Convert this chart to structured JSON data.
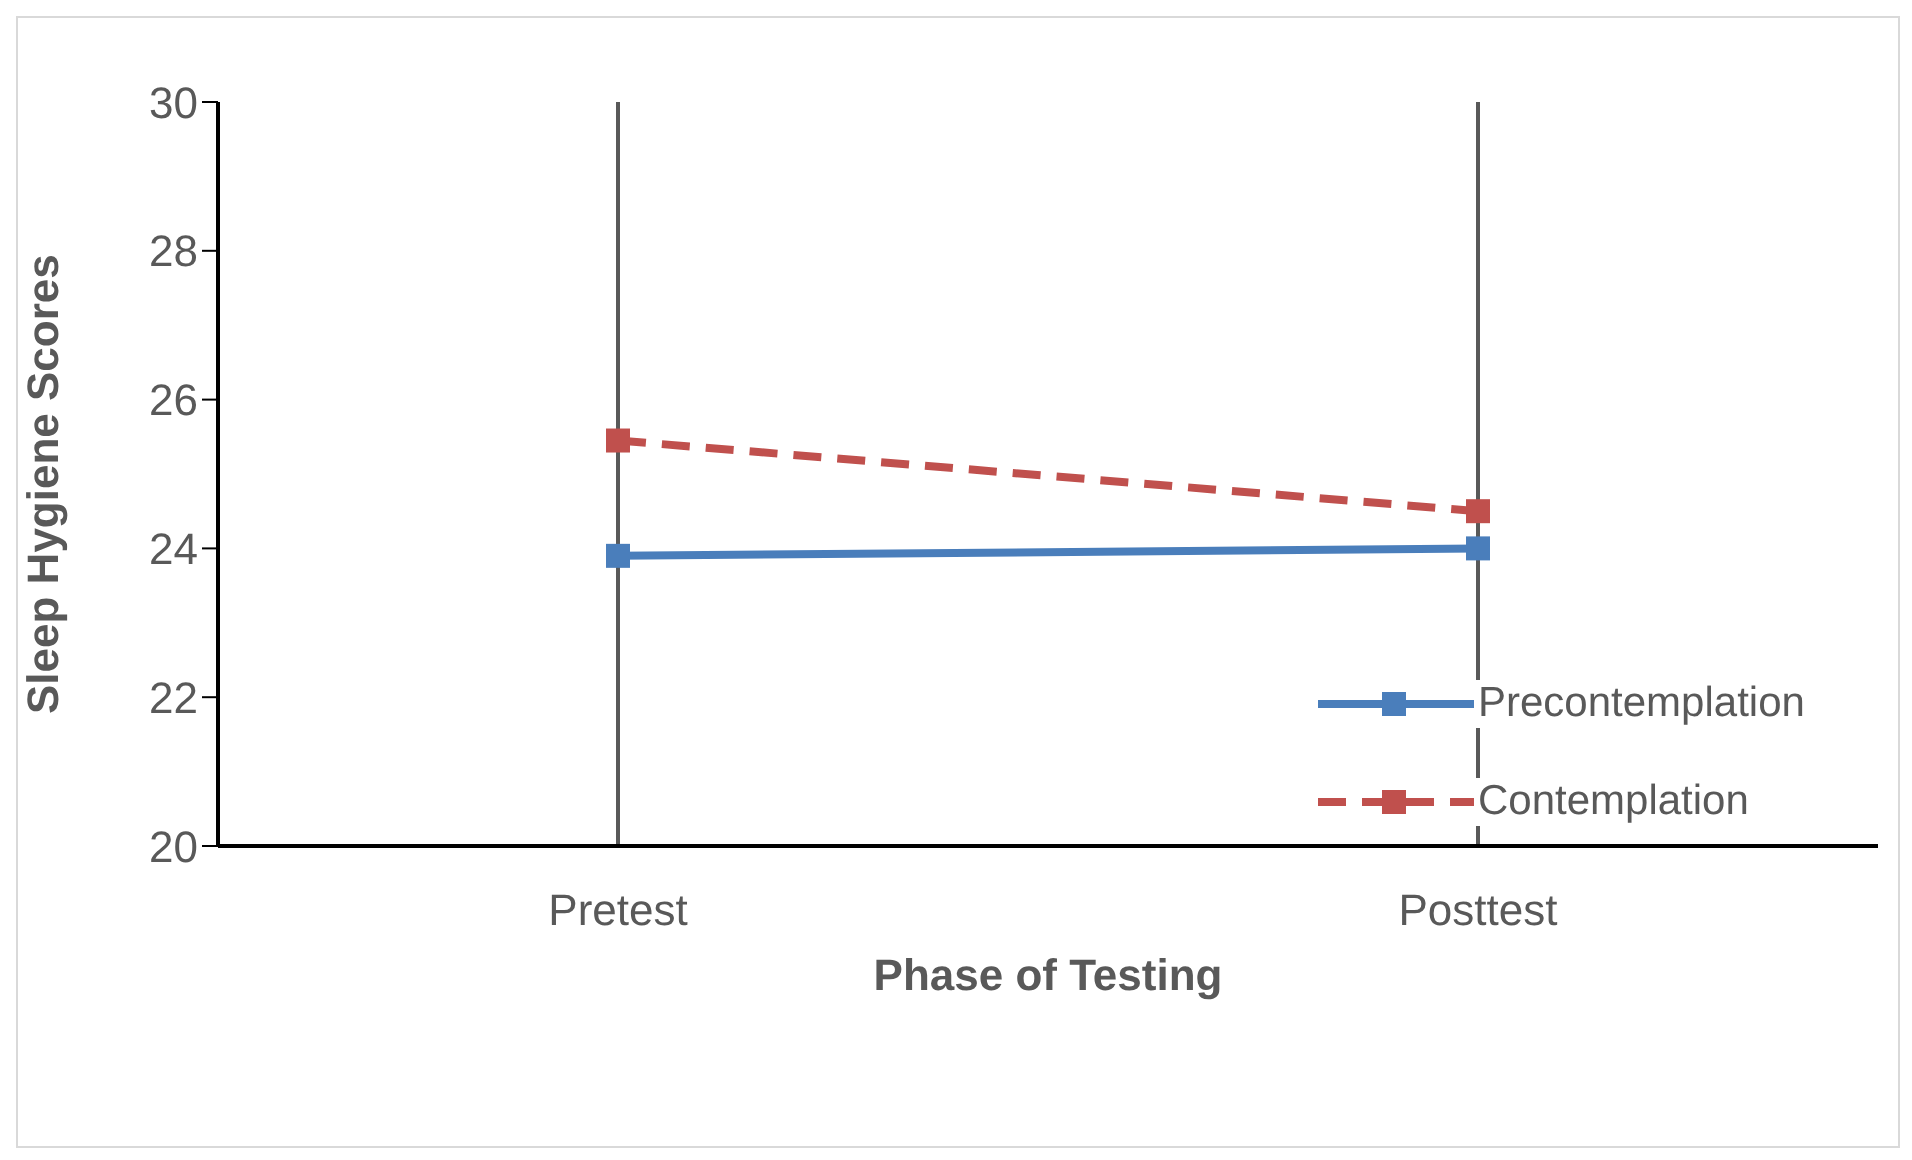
{
  "chart_data": {
    "type": "line",
    "xlabel": "Phase of Testing",
    "ylabel": "Sleep Hygiene Scores",
    "categories": [
      "Pretest",
      "Posttest"
    ],
    "series": [
      {
        "name": "Precontemplation",
        "color": "#4a7ebb",
        "values": [
          23.9,
          24.0
        ],
        "line_style": "solid"
      },
      {
        "name": "Contemplation",
        "color": "#c0504d",
        "values": [
          25.45,
          24.5
        ],
        "line_style": "dashed"
      }
    ],
    "ylim": [
      20,
      30
    ],
    "yticks": [
      20,
      22,
      24,
      26,
      28,
      30
    ],
    "grid": "x",
    "legend": "right",
    "marker": "square"
  }
}
